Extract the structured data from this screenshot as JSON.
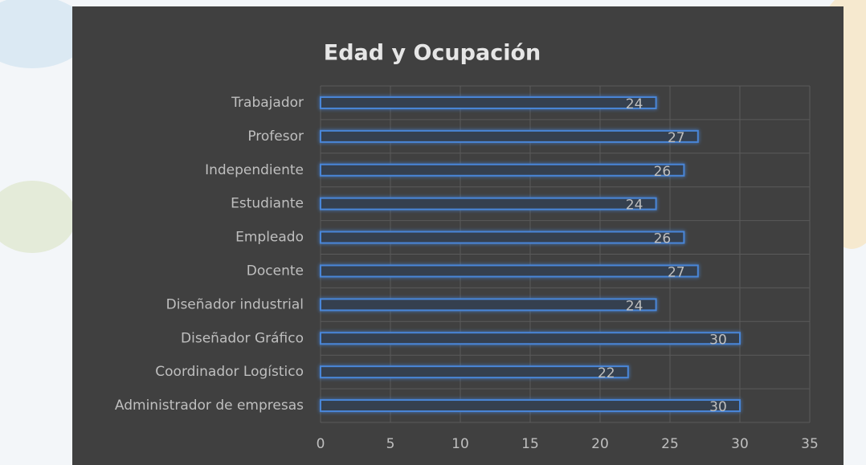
{
  "chart_data": {
    "type": "barh",
    "title": "Edad y Ocupación",
    "categories": [
      "Trabajador",
      "Profesor",
      "Independiente",
      "Estudiante",
      "Empleado",
      "Docente",
      "Diseñador industrial",
      "Diseñador Gráfico",
      "Coordinador Logístico",
      "Administrador de empresas"
    ],
    "values": [
      24,
      27,
      26,
      24,
      26,
      27,
      24,
      30,
      22,
      30
    ],
    "color": "#4a86d8",
    "xlim": [
      0,
      35
    ],
    "xticks": [
      0,
      5,
      10,
      15,
      20,
      25,
      30,
      35
    ],
    "grid": true
  }
}
